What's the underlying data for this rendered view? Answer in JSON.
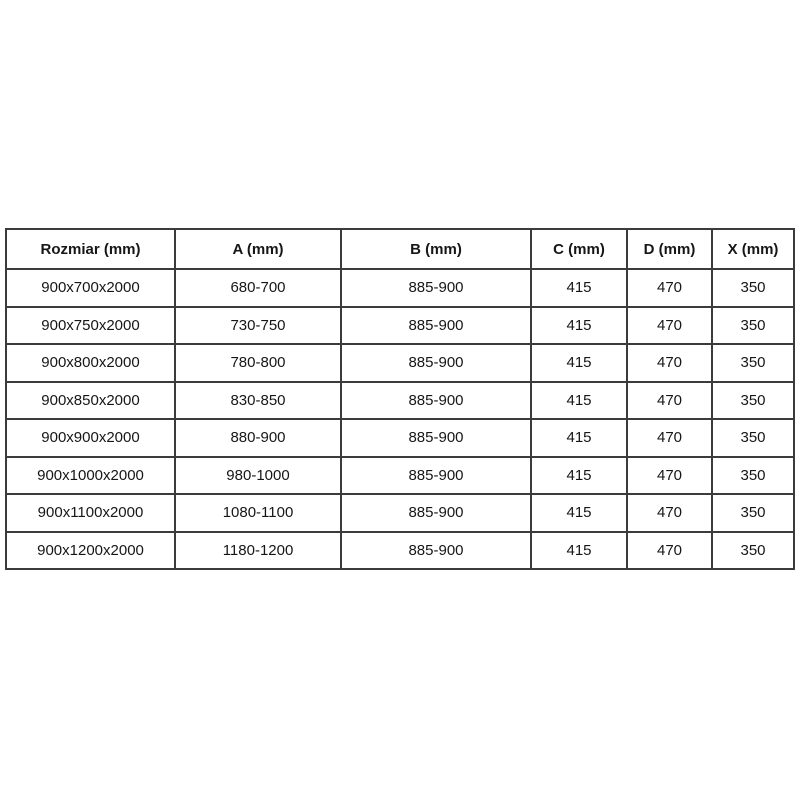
{
  "colors": {
    "background": "#ffffff",
    "table_border": "#3b3b3b",
    "text": "#161616"
  },
  "table": {
    "columns": [
      "Rozmiar (mm)",
      "A (mm)",
      "B (mm)",
      "C (mm)",
      "D (mm)",
      "X (mm)"
    ],
    "rows": [
      [
        "900x700x2000",
        "680-700",
        "885-900",
        "415",
        "470",
        "350"
      ],
      [
        "900x750x2000",
        "730-750",
        "885-900",
        "415",
        "470",
        "350"
      ],
      [
        "900x800x2000",
        "780-800",
        "885-900",
        "415",
        "470",
        "350"
      ],
      [
        "900x850x2000",
        "830-850",
        "885-900",
        "415",
        "470",
        "350"
      ],
      [
        "900x900x2000",
        "880-900",
        "885-900",
        "415",
        "470",
        "350"
      ],
      [
        "900x1000x2000",
        "980-1000",
        "885-900",
        "415",
        "470",
        "350"
      ],
      [
        "900x1100x2000",
        "1080-1100",
        "885-900",
        "415",
        "470",
        "350"
      ],
      [
        "900x1200x2000",
        "1180-1200",
        "885-900",
        "415",
        "470",
        "350"
      ]
    ]
  }
}
